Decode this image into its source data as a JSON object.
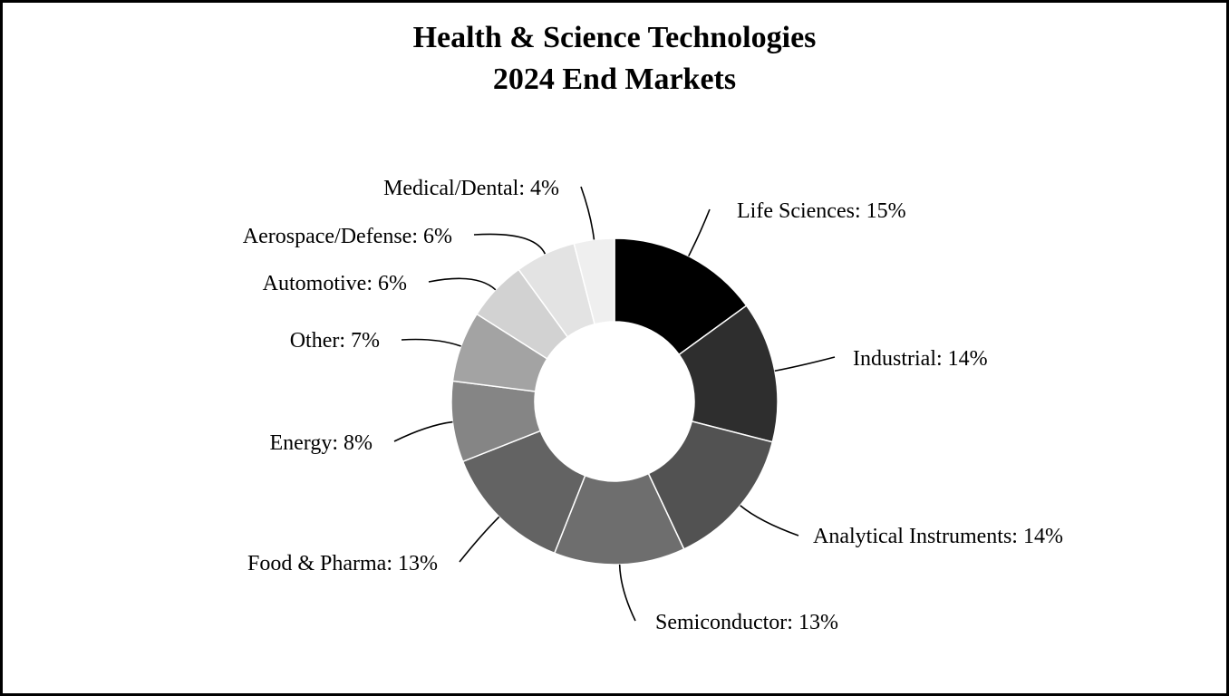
{
  "chart_data": {
    "type": "pie",
    "title": "Health & Science Technologies",
    "subtitle": "2024 End Markets",
    "unit": "%",
    "donut": true,
    "legend": "none",
    "slices": [
      {
        "label": "Life Sciences: 15%",
        "name": "Life Sciences",
        "value": 15,
        "color": "#000000"
      },
      {
        "label": "Industrial: 14%",
        "name": "Industrial",
        "value": 14,
        "color": "#2e2e2e"
      },
      {
        "label": "Analytical Instruments: 14%",
        "name": "Analytical Instruments",
        "value": 14,
        "color": "#525252"
      },
      {
        "label": "Semiconductor: 13%",
        "name": "Semiconductor",
        "value": 13,
        "color": "#6e6e6e"
      },
      {
        "label": "Food & Pharma: 13%",
        "name": "Food & Pharma",
        "value": 13,
        "color": "#636363"
      },
      {
        "label": "Energy: 8%",
        "name": "Energy",
        "value": 8,
        "color": "#858585"
      },
      {
        "label": "Other: 7%",
        "name": "Other",
        "value": 7,
        "color": "#a3a3a3"
      },
      {
        "label": "Automotive: 6%",
        "name": "Automotive",
        "value": 6,
        "color": "#d2d2d2"
      },
      {
        "label": "Aerospace/Defense: 6%",
        "name": "Aerospace/Defense",
        "value": 6,
        "color": "#e3e3e3"
      },
      {
        "label": "Medical/Dental: 4%",
        "name": "Medical/Dental",
        "value": 4,
        "color": "#efefef"
      }
    ]
  }
}
